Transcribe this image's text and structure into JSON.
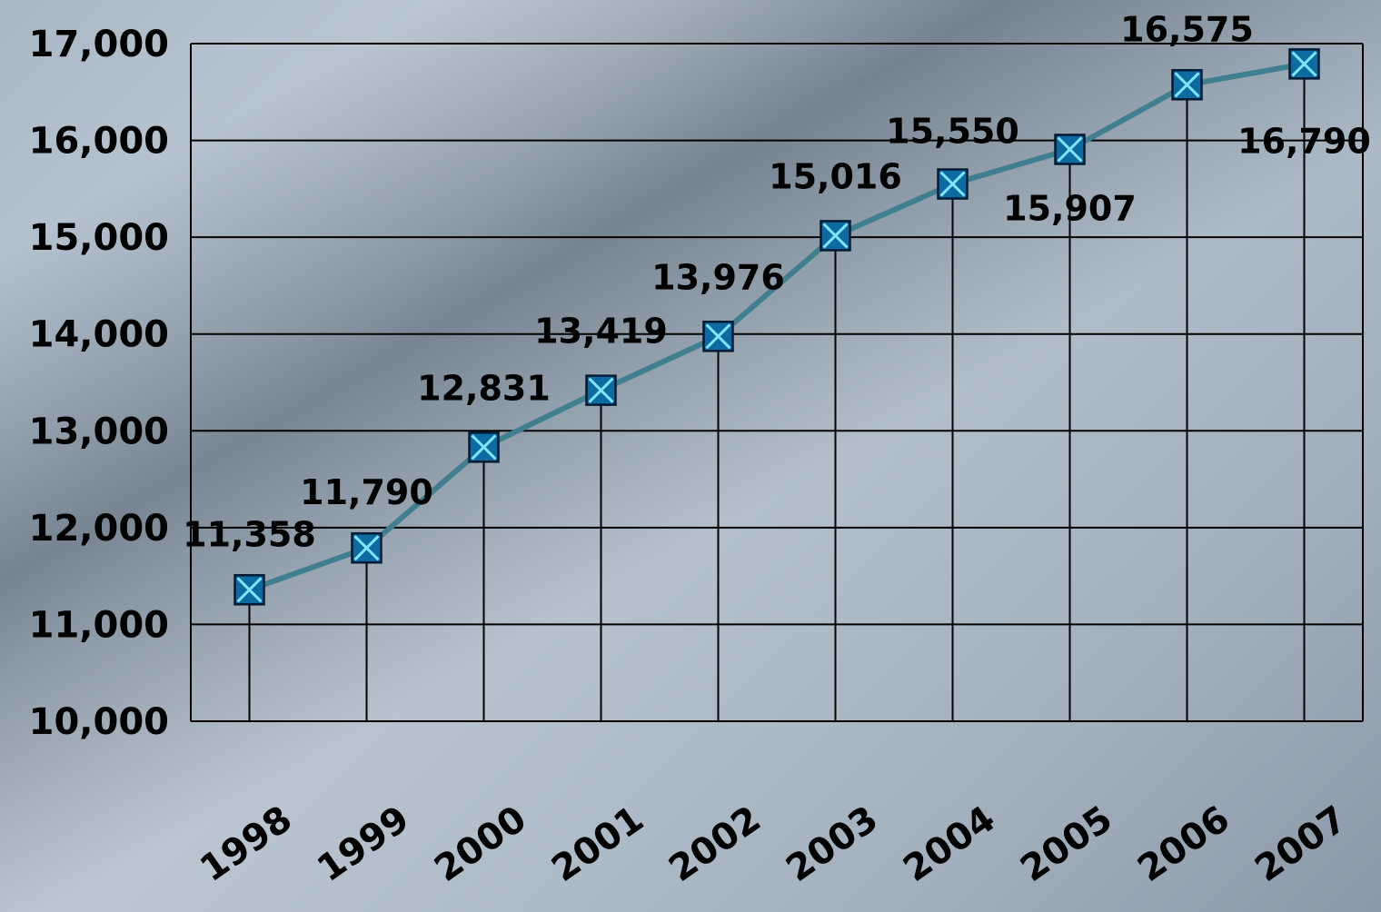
{
  "chart_data": {
    "type": "line",
    "categories": [
      "1998",
      "1999",
      "2000",
      "2001",
      "2002",
      "2003",
      "2004",
      "2005",
      "2006",
      "2007"
    ],
    "series": [
      {
        "values": [
          11358,
          11790,
          12831,
          13419,
          13976,
          15016,
          15550,
          15907,
          16575,
          16790
        ],
        "labels": [
          "11,358",
          "11,790",
          "12,831",
          "13,419",
          "13,976",
          "15,016",
          "15,550",
          "15,907",
          "16,575",
          "16,790"
        ]
      }
    ],
    "y_ticks": [
      "10,000",
      "11,000",
      "12,000",
      "13,000",
      "14,000",
      "15,000",
      "16,000",
      "17,000"
    ],
    "ylim": [
      10000,
      17000
    ],
    "grid": true,
    "drop_lines": true,
    "marker": "x-square",
    "colors": {
      "line": "#3f7f8f",
      "marker_fill": "#0e6aa0",
      "marker_stroke": "#001a33",
      "marker_x": "#7fe6ff",
      "grid": "#000000"
    }
  }
}
